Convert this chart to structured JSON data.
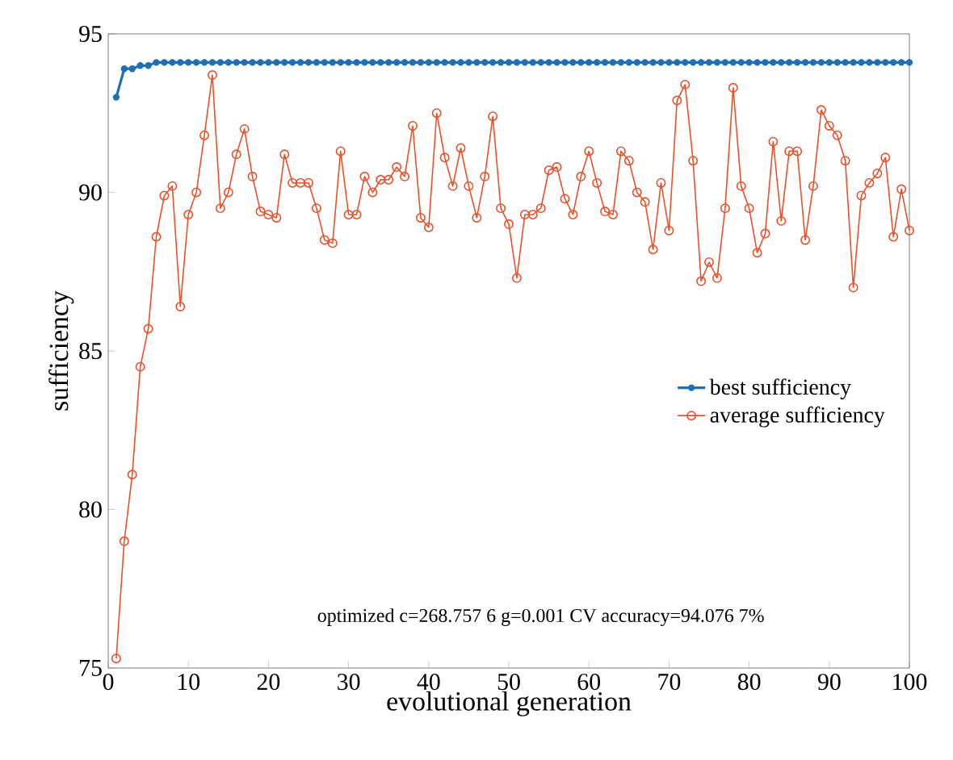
{
  "chart_data": {
    "type": "line",
    "xlabel": "evolutional generation",
    "ylabel": "sufficiency",
    "x": [
      1,
      2,
      3,
      4,
      5,
      6,
      7,
      8,
      9,
      10,
      11,
      12,
      13,
      14,
      15,
      16,
      17,
      18,
      19,
      20,
      21,
      22,
      23,
      24,
      25,
      26,
      27,
      28,
      29,
      30,
      31,
      32,
      33,
      34,
      35,
      36,
      37,
      38,
      39,
      40,
      41,
      42,
      43,
      44,
      45,
      46,
      47,
      48,
      49,
      50,
      51,
      52,
      53,
      54,
      55,
      56,
      57,
      58,
      59,
      60,
      61,
      62,
      63,
      64,
      65,
      66,
      67,
      68,
      69,
      70,
      71,
      72,
      73,
      74,
      75,
      76,
      77,
      78,
      79,
      80,
      81,
      82,
      83,
      84,
      85,
      86,
      87,
      88,
      89,
      90,
      91,
      92,
      93,
      94,
      95,
      96,
      97,
      98,
      99,
      100
    ],
    "series": [
      {
        "name": "best sufficiency",
        "color": "#1f6fb5",
        "values": [
          93.0,
          93.9,
          93.9,
          94.0,
          94.0,
          94.1,
          94.1,
          94.1,
          94.1,
          94.1,
          94.1,
          94.1,
          94.1,
          94.1,
          94.1,
          94.1,
          94.1,
          94.1,
          94.1,
          94.1,
          94.1,
          94.1,
          94.1,
          94.1,
          94.1,
          94.1,
          94.1,
          94.1,
          94.1,
          94.1,
          94.1,
          94.1,
          94.1,
          94.1,
          94.1,
          94.1,
          94.1,
          94.1,
          94.1,
          94.1,
          94.1,
          94.1,
          94.1,
          94.1,
          94.1,
          94.1,
          94.1,
          94.1,
          94.1,
          94.1,
          94.1,
          94.1,
          94.1,
          94.1,
          94.1,
          94.1,
          94.1,
          94.1,
          94.1,
          94.1,
          94.1,
          94.1,
          94.1,
          94.1,
          94.1,
          94.1,
          94.1,
          94.1,
          94.1,
          94.1,
          94.1,
          94.1,
          94.1,
          94.1,
          94.1,
          94.1,
          94.1,
          94.1,
          94.1,
          94.1,
          94.1,
          94.1,
          94.1,
          94.1,
          94.1,
          94.1,
          94.1,
          94.1,
          94.1,
          94.1,
          94.1,
          94.1,
          94.1,
          94.1,
          94.1,
          94.1,
          94.1,
          94.1,
          94.1,
          94.1
        ]
      },
      {
        "name": "average sufficiency",
        "color": "#e8522a",
        "values": [
          75.3,
          79.0,
          81.1,
          84.5,
          85.7,
          88.6,
          89.9,
          90.2,
          86.4,
          89.3,
          90.0,
          91.8,
          93.7,
          89.5,
          90.0,
          91.2,
          92.0,
          90.5,
          89.4,
          89.3,
          89.2,
          91.2,
          90.3,
          90.3,
          90.3,
          89.5,
          88.5,
          88.4,
          91.3,
          89.3,
          89.3,
          90.5,
          90.0,
          90.4,
          90.4,
          90.8,
          90.5,
          92.1,
          89.2,
          88.9,
          92.5,
          91.1,
          90.2,
          91.4,
          90.2,
          89.2,
          90.5,
          92.4,
          89.5,
          89.0,
          87.3,
          89.3,
          89.3,
          89.5,
          90.7,
          90.8,
          89.8,
          89.3,
          90.5,
          91.3,
          90.3,
          89.4,
          89.3,
          91.3,
          91.0,
          90.0,
          89.7,
          88.2,
          90.3,
          88.8,
          92.9,
          93.4,
          91.0,
          87.2,
          87.8,
          87.3,
          89.5,
          93.3,
          90.2,
          89.5,
          88.1,
          88.7,
          91.6,
          89.1,
          91.3,
          91.3,
          88.5,
          90.2,
          92.6,
          92.1,
          91.8,
          91.0,
          87.0,
          89.9,
          90.3,
          90.6,
          91.1,
          88.6,
          90.1,
          88.8
        ]
      }
    ],
    "xlim": [
      0,
      100
    ],
    "xticks": [
      0,
      10,
      20,
      30,
      40,
      50,
      60,
      70,
      80,
      90,
      100
    ],
    "ylim": [
      75,
      95
    ],
    "yticks": [
      75,
      80,
      85,
      90,
      95
    ],
    "marker": "circle",
    "legend": "right",
    "grid": false,
    "annotations": [
      "optimized c=268.757 6 g=0.001   CV accuracy=94.076 7%"
    ]
  }
}
